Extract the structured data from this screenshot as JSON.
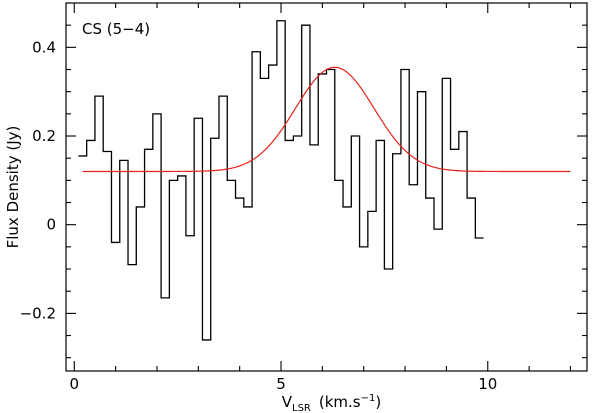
{
  "chart_data": {
    "type": "line",
    "annotation": "CS (5−4)",
    "xlabel_main": "V",
    "xlabel_sub": "LSR",
    "xlabel_units": "(km.s",
    "xlabel_exp": "−1",
    "xlabel_close": ")",
    "ylabel": "Flux Density (Jy)",
    "xlim": [
      -0.2,
      12.4
    ],
    "ylim": [
      -0.33,
      0.5
    ],
    "grid": false,
    "x_ticks": [
      {
        "value": 0,
        "label": "0"
      },
      {
        "value": 5,
        "label": "5"
      },
      {
        "value": 10,
        "label": "10"
      }
    ],
    "y_ticks": [
      {
        "value": -0.2,
        "label": "−0.2"
      },
      {
        "value": 0,
        "label": "0"
      },
      {
        "value": 0.2,
        "label": "0.2"
      },
      {
        "value": 0.4,
        "label": "0.4"
      }
    ],
    "series": [
      {
        "style": "step",
        "color": "#000000",
        "bin_width": 0.2,
        "x_start": 0.1,
        "values": [
          0.155,
          0.19,
          0.29,
          0.165,
          -0.04,
          0.145,
          -0.09,
          0.04,
          0.17,
          0.25,
          -0.165,
          0.1,
          0.11,
          -0.025,
          0.24,
          -0.26,
          0.195,
          0.29,
          0.1,
          0.06,
          0.04,
          0.39,
          0.33,
          0.36,
          0.46,
          0.19,
          0.2,
          0.45,
          0.18,
          0.34,
          0.35,
          0.1,
          0.04,
          0.2,
          -0.05,
          0.03,
          0.19,
          -0.1,
          0.16,
          0.35,
          0.09,
          0.3,
          0.06,
          -0.01,
          0.33,
          0.17,
          0.21,
          0.06,
          -0.03
        ]
      },
      {
        "style": "line",
        "color": "#e8231a",
        "model": "gaussian",
        "baseline": 0.12,
        "amplitude": 0.235,
        "center": 6.3,
        "sigma": 0.95,
        "x_range": [
          0.2,
          12.0
        ]
      }
    ]
  }
}
